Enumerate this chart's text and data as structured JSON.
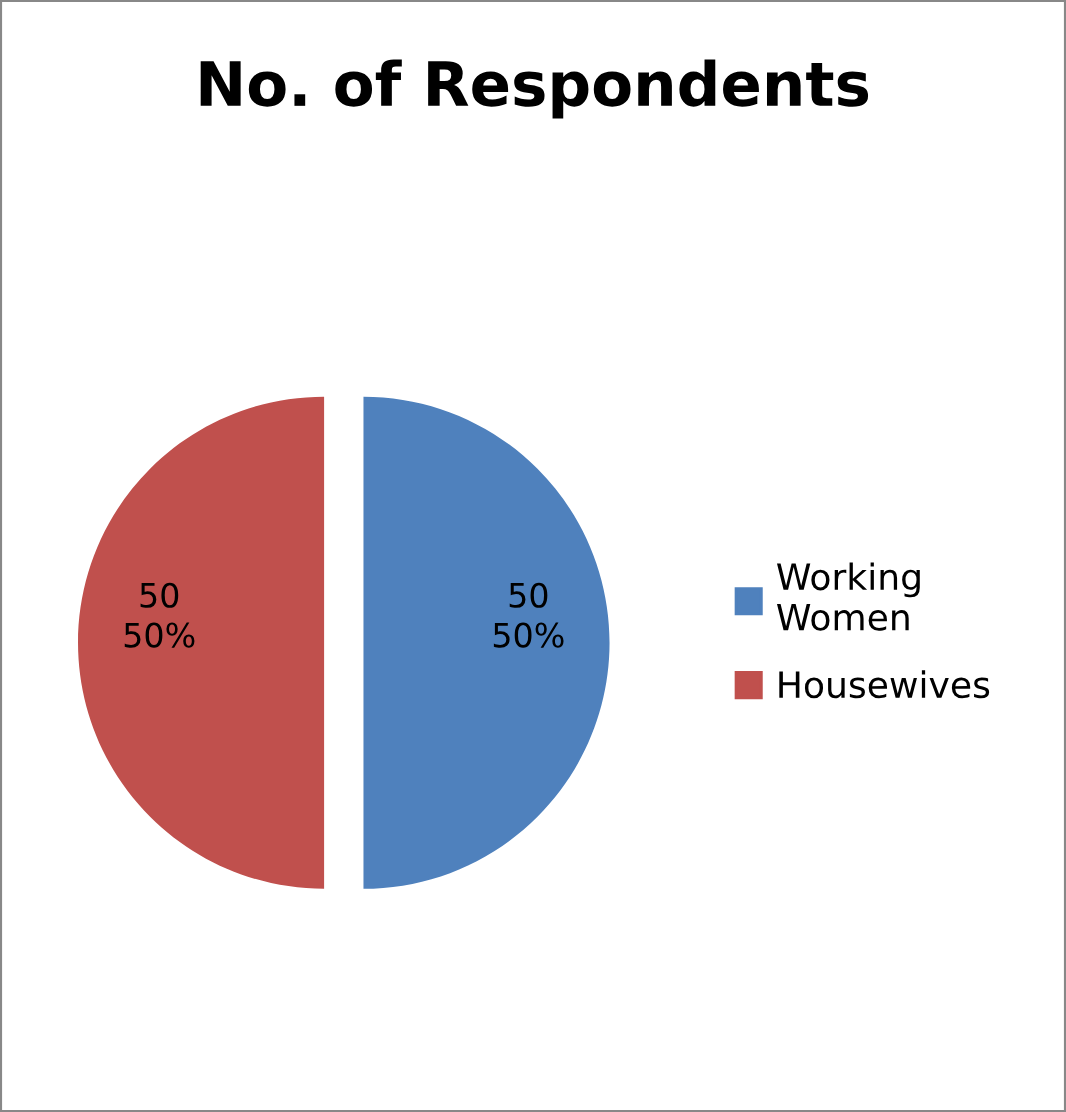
{
  "chart_data": {
    "type": "pie",
    "title": "No. of Respondents",
    "categories": [
      "Working\nWomen",
      "Housewives"
    ],
    "values": [
      50,
      50
    ],
    "colors": [
      "#4f81bd",
      "#c0504d"
    ],
    "value_labels": [
      "50\n50%",
      "50\n50%"
    ],
    "legend": "right"
  }
}
